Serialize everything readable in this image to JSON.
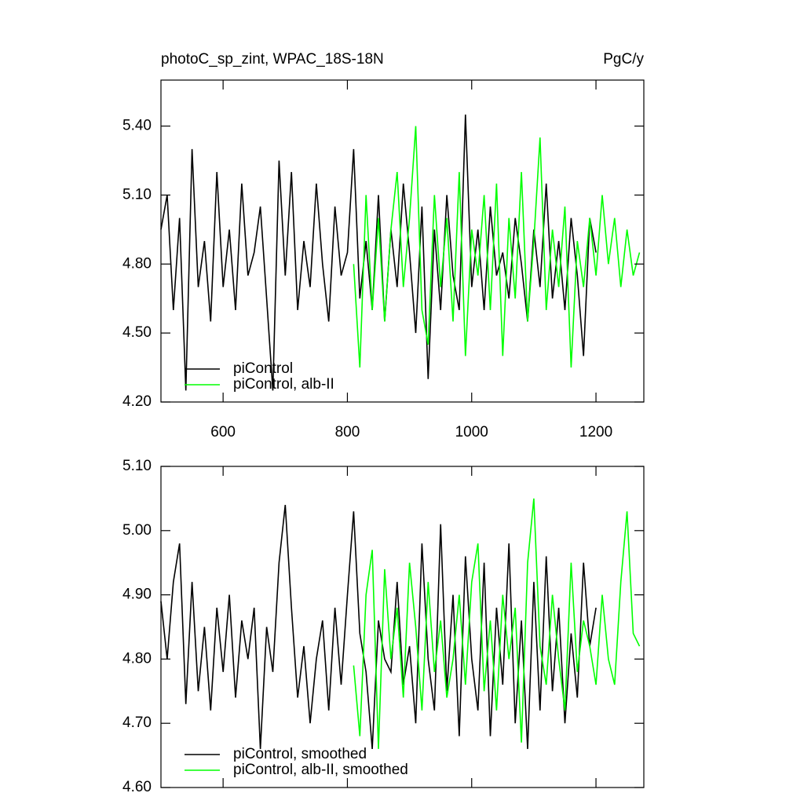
{
  "chart_data": [
    {
      "type": "line",
      "title": "photoC_sp_zint, WPAC_18S-18N",
      "units": "PgC/y",
      "xlim": [
        500,
        1277
      ],
      "xticks": [
        600,
        800,
        1000,
        1200
      ],
      "xtick_labels": true,
      "ylim": [
        4.2,
        5.6
      ],
      "yticks": [
        {
          "value": 4.2,
          "label": "4.20"
        },
        {
          "value": 4.5,
          "label": "4.50"
        },
        {
          "value": 4.8,
          "label": "4.80"
        },
        {
          "value": 5.1,
          "label": "5.10"
        },
        {
          "value": 5.4,
          "label": "5.40"
        }
      ],
      "legend": "lower left",
      "series": [
        {
          "name": "piControl",
          "color": "#000000",
          "x": [
            500,
            510,
            520,
            530,
            540,
            550,
            560,
            570,
            580,
            590,
            600,
            610,
            620,
            630,
            640,
            650,
            660,
            670,
            680,
            690,
            700,
            710,
            720,
            730,
            740,
            750,
            760,
            770,
            780,
            790,
            800,
            810,
            820,
            830,
            840,
            850,
            860,
            870,
            880,
            890,
            900,
            910,
            920,
            930,
            940,
            950,
            960,
            970,
            980,
            990,
            1000,
            1010,
            1020,
            1030,
            1040,
            1050,
            1060,
            1070,
            1080,
            1090,
            1100,
            1110,
            1120,
            1130,
            1140,
            1150,
            1160,
            1170,
            1180,
            1190,
            1200
          ],
          "values": [
            4.95,
            5.1,
            4.6,
            5.0,
            4.25,
            5.3,
            4.7,
            4.9,
            4.55,
            5.2,
            4.7,
            4.95,
            4.6,
            5.15,
            4.75,
            4.85,
            5.05,
            4.65,
            4.25,
            5.25,
            4.75,
            5.2,
            4.6,
            4.9,
            4.7,
            5.15,
            4.8,
            4.55,
            5.05,
            4.75,
            4.85,
            5.3,
            4.65,
            4.9,
            4.6,
            5.1,
            4.55,
            4.95,
            4.7,
            5.15,
            4.85,
            4.5,
            5.05,
            4.3,
            4.95,
            4.6,
            5.1,
            4.75,
            4.6,
            5.45,
            4.7,
            4.95,
            4.6,
            5.05,
            4.75,
            4.85,
            4.65,
            5.0,
            4.8,
            4.55,
            4.95,
            4.7,
            5.15,
            4.65,
            4.9,
            4.6,
            5.0,
            4.75,
            4.4,
            5.0,
            4.85
          ]
        },
        {
          "name": "piControl, alb-II",
          "color": "#00ff00",
          "x": [
            810,
            820,
            830,
            840,
            850,
            860,
            870,
            880,
            890,
            900,
            910,
            920,
            930,
            940,
            950,
            960,
            970,
            980,
            990,
            1000,
            1010,
            1020,
            1030,
            1040,
            1050,
            1060,
            1070,
            1080,
            1090,
            1100,
            1110,
            1120,
            1130,
            1140,
            1150,
            1160,
            1170,
            1180,
            1190,
            1200,
            1210,
            1220,
            1230,
            1240,
            1250,
            1260,
            1270
          ],
          "values": [
            4.8,
            4.35,
            5.1,
            4.6,
            5.0,
            4.55,
            4.95,
            5.2,
            4.7,
            5.0,
            5.4,
            4.6,
            4.45,
            5.1,
            4.7,
            5.0,
            4.55,
            5.2,
            4.4,
            4.95,
            4.75,
            5.1,
            4.6,
            5.15,
            4.4,
            5.0,
            4.65,
            5.2,
            4.55,
            4.9,
            5.35,
            4.6,
            4.95,
            4.7,
            5.05,
            4.35,
            4.9,
            4.7,
            5.0,
            4.75,
            5.1,
            4.8,
            5.0,
            4.7,
            4.95,
            4.75,
            4.85
          ]
        }
      ]
    },
    {
      "type": "line",
      "xlim": [
        500,
        1277
      ],
      "xticks": [
        600,
        800,
        1000,
        1200
      ],
      "xtick_labels": false,
      "ylim": [
        4.6,
        5.1
      ],
      "yticks": [
        {
          "value": 4.6,
          "label": "4.60"
        },
        {
          "value": 4.7,
          "label": "4.70"
        },
        {
          "value": 4.8,
          "label": "4.80"
        },
        {
          "value": 4.9,
          "label": "4.90"
        },
        {
          "value": 5.0,
          "label": "5.00"
        },
        {
          "value": 5.1,
          "label": "5.10"
        }
      ],
      "legend": "lower left",
      "series": [
        {
          "name": "piControl, smoothed",
          "color": "#000000",
          "x": [
            500,
            510,
            520,
            530,
            540,
            550,
            560,
            570,
            580,
            590,
            600,
            610,
            620,
            630,
            640,
            650,
            660,
            670,
            680,
            690,
            700,
            710,
            720,
            730,
            740,
            750,
            760,
            770,
            780,
            790,
            800,
            810,
            820,
            830,
            840,
            850,
            860,
            870,
            880,
            890,
            900,
            910,
            920,
            930,
            940,
            950,
            960,
            970,
            980,
            990,
            1000,
            1010,
            1020,
            1030,
            1040,
            1050,
            1060,
            1070,
            1080,
            1090,
            1100,
            1110,
            1120,
            1130,
            1140,
            1150,
            1160,
            1170,
            1180,
            1190,
            1200
          ],
          "values": [
            4.89,
            4.8,
            4.92,
            4.98,
            4.73,
            4.92,
            4.75,
            4.85,
            4.72,
            4.88,
            4.78,
            4.9,
            4.74,
            4.86,
            4.8,
            4.88,
            4.66,
            4.85,
            4.78,
            4.95,
            5.04,
            4.88,
            4.74,
            4.82,
            4.7,
            4.8,
            4.86,
            4.72,
            4.88,
            4.76,
            4.9,
            5.03,
            4.84,
            4.78,
            4.66,
            4.86,
            4.8,
            4.78,
            4.92,
            4.76,
            4.82,
            4.7,
            4.98,
            4.8,
            4.72,
            5.01,
            4.75,
            4.9,
            4.68,
            4.96,
            4.8,
            4.72,
            4.95,
            4.68,
            4.88,
            4.76,
            4.98,
            4.7,
            4.86,
            4.66,
            4.92,
            4.72,
            4.96,
            4.75,
            4.88,
            4.7,
            4.84,
            4.74,
            4.95,
            4.82,
            4.88
          ]
        },
        {
          "name": "piControl, alb-II, smoothed",
          "color": "#00ff00",
          "x": [
            810,
            820,
            830,
            840,
            850,
            860,
            870,
            880,
            890,
            900,
            910,
            920,
            930,
            940,
            950,
            960,
            970,
            980,
            990,
            1000,
            1010,
            1020,
            1030,
            1040,
            1050,
            1060,
            1070,
            1080,
            1090,
            1100,
            1110,
            1120,
            1130,
            1140,
            1150,
            1160,
            1170,
            1180,
            1190,
            1200,
            1210,
            1220,
            1230,
            1240,
            1250,
            1260,
            1270
          ],
          "values": [
            4.79,
            4.68,
            4.9,
            4.97,
            4.66,
            4.94,
            4.8,
            4.88,
            4.74,
            4.95,
            4.85,
            4.72,
            4.92,
            4.78,
            4.86,
            4.74,
            4.8,
            4.9,
            4.76,
            4.92,
            4.98,
            4.75,
            4.86,
            4.72,
            4.9,
            4.8,
            4.88,
            4.67,
            4.95,
            5.05,
            4.82,
            4.76,
            4.9,
            4.8,
            4.72,
            4.95,
            4.78,
            4.86,
            4.82,
            4.76,
            4.9,
            4.8,
            4.76,
            4.92,
            5.03,
            4.84,
            4.82
          ]
        }
      ]
    }
  ]
}
